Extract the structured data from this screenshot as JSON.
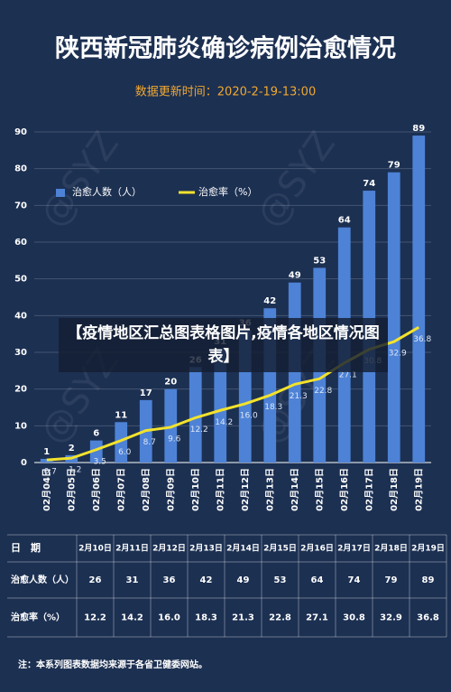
{
  "chart_data": {
    "type": "bar-line",
    "title": "陕西新冠肺炎确诊病例治愈情况",
    "subtitle": "数据更新时间：2020-2-19-13:00",
    "categories": [
      "02月04日",
      "02月05日",
      "02月06日",
      "02月07日",
      "02月08日",
      "02月09日",
      "02月10日",
      "02月11日",
      "02月12日",
      "02月13日",
      "02月14日",
      "02月15日",
      "02月16日",
      "02月17日",
      "02月18日",
      "02月19日"
    ],
    "series": [
      {
        "name": "治愈人数（人）",
        "type": "bar",
        "color": "#4d82d6",
        "values": [
          1,
          2,
          6,
          11,
          17,
          20,
          26,
          31,
          36,
          42,
          49,
          53,
          64,
          74,
          79,
          89
        ]
      },
      {
        "name": "治愈率（%）",
        "type": "line",
        "color": "#f3e22c",
        "values": [
          0.7,
          1.2,
          3.5,
          6.0,
          8.7,
          9.6,
          12.2,
          14.2,
          16.0,
          18.3,
          21.3,
          22.8,
          27.1,
          30.8,
          32.9,
          36.8
        ],
        "value_labels": [
          "0.7",
          "1.2",
          "3.5",
          "6.0",
          "8.7",
          "9.6",
          "12.2",
          "14.2",
          "16.0",
          "18.3",
          "21.3",
          "22.8",
          "27.1",
          "30.8",
          "32.9",
          "36.8"
        ]
      }
    ],
    "ylim": [
      0,
      90
    ],
    "yticks": [
      0,
      10,
      20,
      30,
      40,
      50,
      60,
      70,
      80,
      90
    ],
    "grid": true,
    "legend": "upper left"
  },
  "overlay_title": "【疫情地区汇总图表格图片,疫情各地区情况图表】",
  "watermark": "@SYZ",
  "table": {
    "header": [
      "日　期",
      "2月10日",
      "2月11日",
      "2月12日",
      "2月13日",
      "2月14日",
      "2月15日",
      "2月16日",
      "2月17日",
      "2月18日",
      "2月19日"
    ],
    "rows": [
      [
        "治愈人数（人）",
        "26",
        "31",
        "36",
        "42",
        "49",
        "53",
        "64",
        "74",
        "79",
        "89"
      ],
      [
        "治愈率（%）",
        "12.2",
        "14.2",
        "16.0",
        "18.3",
        "21.3",
        "22.8",
        "27.1",
        "30.8",
        "32.9",
        "36.8"
      ]
    ]
  },
  "footnote": "注：本系列图表数据均来源于各省卫健委网站。"
}
